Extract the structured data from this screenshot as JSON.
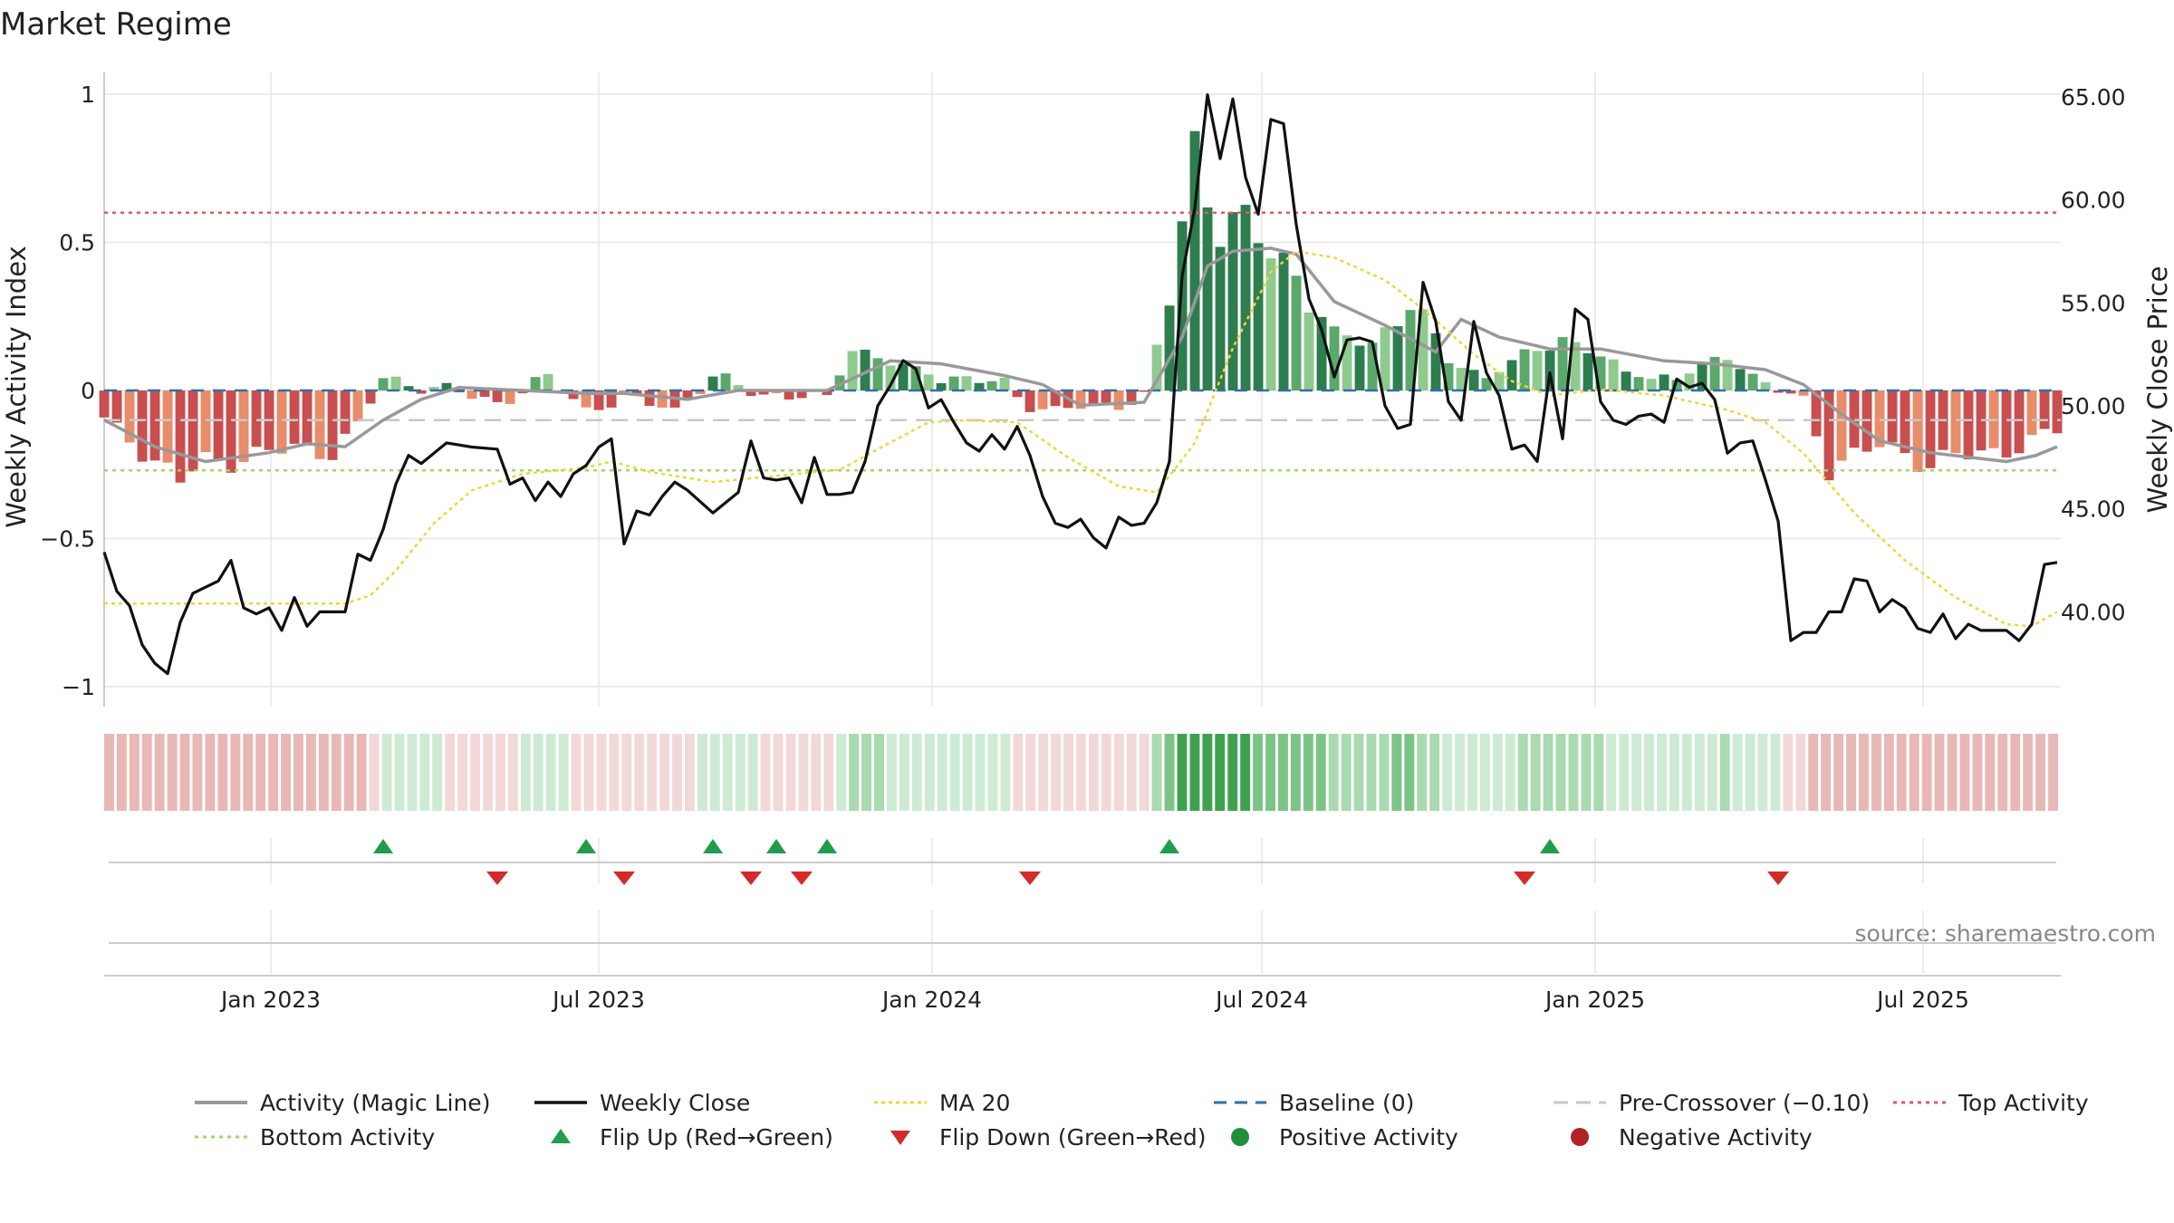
{
  "title": "Market Regime",
  "source": "source: sharemaestro.com",
  "colors": {
    "text": "#222222",
    "grid": "#e6e6e6",
    "pos_bar_strong": "#2e7d4f",
    "pos_bar_mid": "#5aa86c",
    "pos_bar_light": "#8fca8f",
    "neg_bar_strong": "#c94e50",
    "neg_bar_light": "#e88c6a",
    "magic_line": "#999999",
    "close_line": "#111111",
    "ma20": "#f2d535",
    "baseline": "#2f6fa8",
    "pre_crossover": "#c8c8c8",
    "top_activity": "#e05a6a",
    "bottom_activity": "#a6d46a",
    "flip_up": "#1f9d4c",
    "flip_down": "#d42a2a",
    "positive_dot": "#1f8f3a",
    "negative_dot": "#b22222"
  },
  "chart_data": {
    "type": "bar",
    "left_axis": {
      "label": "Weekly Activity Index",
      "ylim": [
        -1.05,
        1.05
      ],
      "ticks": [
        1,
        0.5,
        0,
        -0.5,
        -1
      ],
      "tick_labels": [
        "1",
        "0.5",
        "0",
        "−0.5",
        "−1"
      ]
    },
    "right_axis": {
      "label": "Weekly Close Price",
      "ylim": [
        35.4,
        66.0
      ],
      "ticks": [
        65,
        60,
        55,
        50,
        45,
        40
      ],
      "tick_labels": [
        "65.00",
        "60.00",
        "55.00",
        "50.00",
        "45.00",
        "40.00"
      ]
    },
    "x_axis": {
      "start": "2022-10-01",
      "end": "2025-09-15",
      "ticks": [
        "2023-01-01",
        "2023-07-01",
        "2024-01-01",
        "2024-07-01",
        "2025-01-01",
        "2025-07-01"
      ],
      "tick_labels": [
        "Jan 2023",
        "Jul 2023",
        "Jan 2024",
        "Jul 2024",
        "Jan 2025",
        "Jul 2025"
      ]
    },
    "reference_lines": {
      "baseline": 0,
      "pre_crossover": -0.1,
      "top_activity": 0.6,
      "bottom_activity": -0.27
    },
    "activity_segments": [
      [
        "2022-10-01",
        -0.1
      ],
      [
        "2022-10-22",
        -0.2
      ],
      [
        "2022-11-12",
        -0.3
      ],
      [
        "2022-11-26",
        -0.25
      ],
      [
        "2022-12-17",
        -0.22
      ],
      [
        "2023-01-14",
        -0.2
      ],
      [
        "2023-02-04",
        -0.2
      ],
      [
        "2023-02-18",
        -0.12
      ],
      [
        "2023-03-04",
        0.04
      ],
      [
        "2023-04-01",
        0.01
      ],
      [
        "2023-05-06",
        -0.04
      ],
      [
        "2023-06-03",
        0.04
      ],
      [
        "2023-06-24",
        -0.06
      ],
      [
        "2023-07-15",
        -0.03
      ],
      [
        "2023-08-12",
        -0.06
      ],
      [
        "2023-09-02",
        0.04
      ],
      [
        "2023-09-30",
        -0.01
      ],
      [
        "2023-11-04",
        -0.03
      ],
      [
        "2023-11-18",
        0.15
      ],
      [
        "2023-12-09",
        0.09
      ],
      [
        "2024-01-06",
        0.05
      ],
      [
        "2024-02-10",
        0.02
      ],
      [
        "2024-02-24",
        -0.06
      ],
      [
        "2024-03-30",
        -0.06
      ],
      [
        "2024-04-27",
        -0.02
      ],
      [
        "2024-05-11",
        0.3
      ],
      [
        "2024-05-25",
        0.8
      ],
      [
        "2024-06-08",
        0.6
      ],
      [
        "2024-06-29",
        0.5
      ],
      [
        "2024-07-20",
        0.4
      ],
      [
        "2024-08-10",
        0.18
      ],
      [
        "2024-08-31",
        0.16
      ],
      [
        "2024-09-21",
        0.3
      ],
      [
        "2024-10-12",
        0.1
      ],
      [
        "2024-11-02",
        0.05
      ],
      [
        "2024-12-14",
        0.18
      ],
      [
        "2024-12-28",
        0.14
      ],
      [
        "2025-01-18",
        0.06
      ],
      [
        "2025-02-15",
        0.04
      ],
      [
        "2025-03-15",
        0.12
      ],
      [
        "2025-04-05",
        0.02
      ],
      [
        "2025-04-26",
        -0.04
      ],
      [
        "2025-05-10",
        -0.25
      ],
      [
        "2025-06-07",
        -0.19
      ],
      [
        "2025-07-05",
        -0.24
      ],
      [
        "2025-08-09",
        -0.21
      ],
      [
        "2025-09-13",
        -0.14
      ]
    ],
    "magic_line_segments": [
      [
        "2022-10-01",
        -0.1
      ],
      [
        "2022-10-29",
        -0.19
      ],
      [
        "2022-11-26",
        -0.24
      ],
      [
        "2022-12-31",
        -0.21
      ],
      [
        "2023-01-21",
        -0.18
      ],
      [
        "2023-02-11",
        -0.19
      ],
      [
        "2023-03-04",
        -0.1
      ],
      [
        "2023-03-25",
        -0.03
      ],
      [
        "2023-04-15",
        0.01
      ],
      [
        "2023-05-20",
        0.0
      ],
      [
        "2023-06-24",
        -0.01
      ],
      [
        "2023-07-15",
        -0.01
      ],
      [
        "2023-08-19",
        -0.03
      ],
      [
        "2023-09-16",
        0.0
      ],
      [
        "2023-11-04",
        0.0
      ],
      [
        "2023-12-09",
        0.1
      ],
      [
        "2024-01-06",
        0.09
      ],
      [
        "2024-02-10",
        0.05
      ],
      [
        "2024-03-02",
        0.02
      ],
      [
        "2024-03-23",
        -0.05
      ],
      [
        "2024-04-27",
        -0.04
      ],
      [
        "2024-05-18",
        0.18
      ],
      [
        "2024-06-01",
        0.42
      ],
      [
        "2024-06-15",
        0.47
      ],
      [
        "2024-07-06",
        0.48
      ],
      [
        "2024-07-20",
        0.46
      ],
      [
        "2024-08-10",
        0.3
      ],
      [
        "2024-09-07",
        0.22
      ],
      [
        "2024-10-05",
        0.13
      ],
      [
        "2024-10-19",
        0.24
      ],
      [
        "2024-11-09",
        0.18
      ],
      [
        "2024-12-07",
        0.14
      ],
      [
        "2025-01-04",
        0.14
      ],
      [
        "2025-02-08",
        0.1
      ],
      [
        "2025-03-08",
        0.09
      ],
      [
        "2025-04-05",
        0.07
      ],
      [
        "2025-04-26",
        0.02
      ],
      [
        "2025-05-17",
        -0.08
      ],
      [
        "2025-06-07",
        -0.17
      ],
      [
        "2025-07-05",
        -0.21
      ],
      [
        "2025-08-16",
        -0.24
      ],
      [
        "2025-09-01",
        -0.22
      ],
      [
        "2025-09-13",
        -0.19
      ]
    ],
    "weekly_close": [
      [
        "2022-10-01",
        42.9
      ],
      [
        "2022-10-08",
        41.0
      ],
      [
        "2022-10-15",
        40.3
      ],
      [
        "2022-10-22",
        38.4
      ],
      [
        "2022-10-29",
        37.5
      ],
      [
        "2022-11-05",
        37.0
      ],
      [
        "2022-11-12",
        39.5
      ],
      [
        "2022-11-19",
        40.9
      ],
      [
        "2022-12-03",
        41.5
      ],
      [
        "2022-12-10",
        42.5
      ],
      [
        "2022-12-17",
        40.2
      ],
      [
        "2022-12-24",
        39.9
      ],
      [
        "2022-12-31",
        40.2
      ],
      [
        "2023-01-07",
        39.1
      ],
      [
        "2023-01-14",
        40.7
      ],
      [
        "2023-01-21",
        39.3
      ],
      [
        "2023-01-28",
        40.0
      ],
      [
        "2023-02-11",
        40.0
      ],
      [
        "2023-02-18",
        42.8
      ],
      [
        "2023-02-25",
        42.5
      ],
      [
        "2023-03-04",
        44.0
      ],
      [
        "2023-03-11",
        46.2
      ],
      [
        "2023-03-18",
        47.6
      ],
      [
        "2023-03-25",
        47.2
      ],
      [
        "2023-04-08",
        48.2
      ],
      [
        "2023-04-22",
        48.0
      ],
      [
        "2023-05-06",
        47.9
      ],
      [
        "2023-05-13",
        46.2
      ],
      [
        "2023-05-20",
        46.5
      ],
      [
        "2023-05-27",
        45.4
      ],
      [
        "2023-06-03",
        46.3
      ],
      [
        "2023-06-10",
        45.6
      ],
      [
        "2023-06-17",
        46.7
      ],
      [
        "2023-06-24",
        47.1
      ],
      [
        "2023-07-01",
        48.0
      ],
      [
        "2023-07-08",
        48.4
      ],
      [
        "2023-07-15",
        43.3
      ],
      [
        "2023-07-22",
        44.9
      ],
      [
        "2023-07-29",
        44.7
      ],
      [
        "2023-08-05",
        45.6
      ],
      [
        "2023-08-12",
        46.3
      ],
      [
        "2023-08-19",
        45.9
      ],
      [
        "2023-09-02",
        44.8
      ],
      [
        "2023-09-09",
        45.3
      ],
      [
        "2023-09-16",
        45.8
      ],
      [
        "2023-09-23",
        48.3
      ],
      [
        "2023-09-30",
        46.5
      ],
      [
        "2023-10-07",
        46.4
      ],
      [
        "2023-10-14",
        46.5
      ],
      [
        "2023-10-21",
        45.3
      ],
      [
        "2023-10-28",
        47.5
      ],
      [
        "2023-11-04",
        45.7
      ],
      [
        "2023-11-11",
        45.7
      ],
      [
        "2023-11-18",
        45.8
      ],
      [
        "2023-11-25",
        47.3
      ],
      [
        "2023-12-02",
        50.0
      ],
      [
        "2023-12-09",
        51.0
      ],
      [
        "2023-12-16",
        52.2
      ],
      [
        "2023-12-23",
        51.8
      ],
      [
        "2023-12-30",
        49.9
      ],
      [
        "2024-01-06",
        50.3
      ],
      [
        "2024-01-13",
        49.2
      ],
      [
        "2024-01-20",
        48.2
      ],
      [
        "2024-01-27",
        47.8
      ],
      [
        "2024-02-03",
        48.6
      ],
      [
        "2024-02-10",
        47.9
      ],
      [
        "2024-02-17",
        49.0
      ],
      [
        "2024-02-24",
        47.6
      ],
      [
        "2024-03-02",
        45.6
      ],
      [
        "2024-03-09",
        44.3
      ],
      [
        "2024-03-16",
        44.1
      ],
      [
        "2024-03-23",
        44.5
      ],
      [
        "2024-03-30",
        43.6
      ],
      [
        "2024-04-06",
        43.1
      ],
      [
        "2024-04-13",
        44.6
      ],
      [
        "2024-04-20",
        44.2
      ],
      [
        "2024-04-27",
        44.3
      ],
      [
        "2024-05-04",
        45.3
      ],
      [
        "2024-05-11",
        47.3
      ],
      [
        "2024-05-18",
        56.3
      ],
      [
        "2024-05-25",
        59.6
      ],
      [
        "2024-06-01",
        65.1
      ],
      [
        "2024-06-08",
        62.0
      ],
      [
        "2024-06-15",
        64.9
      ],
      [
        "2024-06-22",
        61.1
      ],
      [
        "2024-06-29",
        59.3
      ],
      [
        "2024-07-06",
        63.9
      ],
      [
        "2024-07-13",
        63.7
      ],
      [
        "2024-07-20",
        58.8
      ],
      [
        "2024-07-27",
        55.2
      ],
      [
        "2024-08-03",
        53.7
      ],
      [
        "2024-08-10",
        51.4
      ],
      [
        "2024-08-17",
        53.2
      ],
      [
        "2024-08-24",
        53.3
      ],
      [
        "2024-08-31",
        53.1
      ],
      [
        "2024-09-07",
        50.0
      ],
      [
        "2024-09-14",
        48.9
      ],
      [
        "2024-09-21",
        49.1
      ],
      [
        "2024-09-28",
        56.0
      ],
      [
        "2024-10-05",
        54.1
      ],
      [
        "2024-10-12",
        50.2
      ],
      [
        "2024-10-19",
        49.3
      ],
      [
        "2024-10-26",
        54.1
      ],
      [
        "2024-11-02",
        51.6
      ],
      [
        "2024-11-09",
        50.5
      ],
      [
        "2024-11-16",
        47.9
      ],
      [
        "2024-11-23",
        48.1
      ],
      [
        "2024-11-30",
        47.3
      ],
      [
        "2024-12-07",
        51.6
      ],
      [
        "2024-12-14",
        48.4
      ],
      [
        "2024-12-21",
        54.7
      ],
      [
        "2024-12-28",
        54.2
      ],
      [
        "2025-01-04",
        50.2
      ],
      [
        "2025-01-11",
        49.3
      ],
      [
        "2025-01-18",
        49.1
      ],
      [
        "2025-01-25",
        49.5
      ],
      [
        "2025-02-01",
        49.6
      ],
      [
        "2025-02-08",
        49.2
      ],
      [
        "2025-02-15",
        51.3
      ],
      [
        "2025-02-22",
        50.9
      ],
      [
        "2025-03-01",
        51.1
      ],
      [
        "2025-03-08",
        50.3
      ],
      [
        "2025-03-15",
        47.7
      ],
      [
        "2025-03-22",
        48.2
      ],
      [
        "2025-03-29",
        48.3
      ],
      [
        "2025-04-05",
        46.4
      ],
      [
        "2025-04-12",
        44.4
      ],
      [
        "2025-04-19",
        38.6
      ],
      [
        "2025-04-26",
        39.0
      ],
      [
        "2025-05-03",
        39.0
      ],
      [
        "2025-05-10",
        40.0
      ],
      [
        "2025-05-17",
        40.0
      ],
      [
        "2025-05-24",
        41.6
      ],
      [
        "2025-05-31",
        41.5
      ],
      [
        "2025-06-07",
        40.0
      ],
      [
        "2025-06-14",
        40.6
      ],
      [
        "2025-06-21",
        40.2
      ],
      [
        "2025-06-28",
        39.2
      ],
      [
        "2025-07-05",
        39.0
      ],
      [
        "2025-07-12",
        39.9
      ],
      [
        "2025-07-19",
        38.7
      ],
      [
        "2025-07-26",
        39.4
      ],
      [
        "2025-08-02",
        39.1
      ],
      [
        "2025-08-16",
        39.1
      ],
      [
        "2025-08-23",
        38.6
      ],
      [
        "2025-08-30",
        39.4
      ],
      [
        "2025-09-06",
        42.3
      ],
      [
        "2025-09-13",
        42.4
      ]
    ],
    "ma20": [
      [
        "2022-10-01",
        40.4
      ],
      [
        "2023-02-11",
        40.4
      ],
      [
        "2023-02-25",
        40.8
      ],
      [
        "2023-03-11",
        42.0
      ],
      [
        "2023-04-01",
        44.3
      ],
      [
        "2023-04-22",
        45.9
      ],
      [
        "2023-05-20",
        46.7
      ],
      [
        "2023-06-24",
        47.0
      ],
      [
        "2023-07-08",
        47.3
      ],
      [
        "2023-07-29",
        46.8
      ],
      [
        "2023-09-02",
        46.3
      ],
      [
        "2023-10-07",
        46.6
      ],
      [
        "2023-11-11",
        46.9
      ],
      [
        "2023-12-02",
        47.9
      ],
      [
        "2023-12-30",
        49.2
      ],
      [
        "2024-01-20",
        49.3
      ],
      [
        "2024-02-17",
        49.2
      ],
      [
        "2024-03-16",
        47.5
      ],
      [
        "2024-04-13",
        46.1
      ],
      [
        "2024-05-04",
        45.8
      ],
      [
        "2024-05-25",
        48.2
      ],
      [
        "2024-06-15",
        52.8
      ],
      [
        "2024-07-06",
        56.5
      ],
      [
        "2024-07-20",
        57.5
      ],
      [
        "2024-08-10",
        57.2
      ],
      [
        "2024-09-07",
        56.1
      ],
      [
        "2024-09-28",
        54.7
      ],
      [
        "2024-10-26",
        52.5
      ],
      [
        "2024-11-16",
        51.2
      ],
      [
        "2024-12-07",
        50.5
      ],
      [
        "2025-01-04",
        50.8
      ],
      [
        "2025-02-08",
        50.5
      ],
      [
        "2025-03-15",
        49.8
      ],
      [
        "2025-04-05",
        49.2
      ],
      [
        "2025-04-26",
        47.7
      ],
      [
        "2025-05-24",
        44.8
      ],
      [
        "2025-06-21",
        42.5
      ],
      [
        "2025-07-19",
        40.7
      ],
      [
        "2025-08-16",
        39.4
      ],
      [
        "2025-08-30",
        39.3
      ],
      [
        "2025-09-13",
        40.0
      ]
    ],
    "flip_up_dates": [
      "2023-03-04",
      "2023-06-24",
      "2023-09-02",
      "2023-10-07",
      "2023-11-04",
      "2024-05-11",
      "2024-12-07"
    ],
    "flip_down_dates": [
      "2023-05-06",
      "2023-07-15",
      "2023-09-23",
      "2023-10-21",
      "2024-02-24",
      "2024-11-23",
      "2025-04-12"
    ]
  },
  "legend": [
    {
      "label": "Activity (Magic Line)",
      "icon": "solid-gray-line"
    },
    {
      "label": "Weekly Close",
      "icon": "solid-black-line"
    },
    {
      "label": "MA 20",
      "icon": "dotted-yellow-line"
    },
    {
      "label": "Baseline (0)",
      "icon": "dashed-blue-line"
    },
    {
      "label": "Pre-Crossover (−0.10)",
      "icon": "dashed-gray-line"
    },
    {
      "label": "Top Activity",
      "icon": "dotted-red-line"
    },
    {
      "label": "Bottom Activity",
      "icon": "dotted-green-line"
    },
    {
      "label": "Flip Up (Red→Green)",
      "icon": "triangle-up-icon"
    },
    {
      "label": "Flip Down (Green→Red)",
      "icon": "triangle-down-icon"
    },
    {
      "label": "Positive Activity",
      "icon": "green-dot-icon"
    },
    {
      "label": "Negative Activity",
      "icon": "red-dot-icon"
    }
  ]
}
